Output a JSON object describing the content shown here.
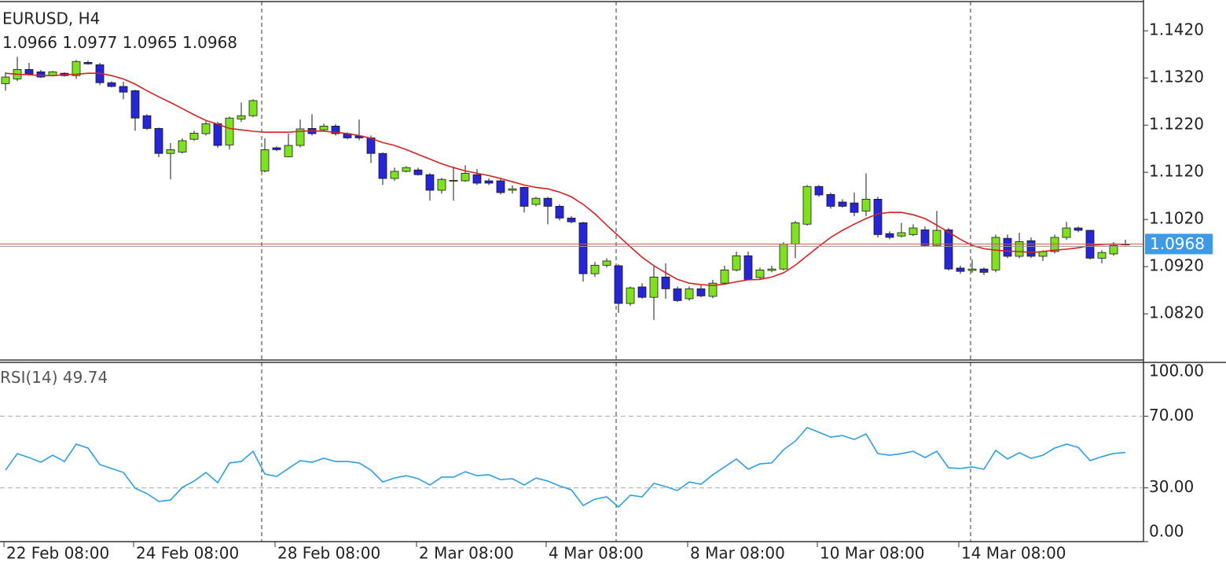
{
  "chart_data": [
    {
      "type": "candlestick",
      "title": "EURUSD, H4",
      "categories": [
        "22 Feb 08:00",
        null,
        null,
        null,
        null,
        null,
        null,
        null,
        null,
        null,
        null,
        "24 Feb 08:00",
        null,
        null,
        null,
        null,
        null,
        null,
        null,
        null,
        null,
        null,
        null,
        "28 Feb 08:00",
        null,
        null,
        null,
        null,
        null,
        null,
        null,
        null,
        null,
        null,
        null,
        "2 Mar 08:00",
        null,
        null,
        null,
        null,
        null,
        null,
        null,
        null,
        null,
        null,
        "4 Mar 08:00",
        null,
        null,
        null,
        null,
        null,
        null,
        null,
        null,
        null,
        null,
        null,
        "8 Mar 08:00",
        null,
        null,
        null,
        null,
        null,
        null,
        null,
        null,
        null,
        null,
        "10 Mar 08:00",
        null,
        null,
        null,
        null,
        null,
        null,
        null,
        null,
        null,
        null,
        null,
        "14 Mar 08:00",
        null,
        null,
        null,
        null,
        null,
        null,
        null,
        null,
        null,
        null,
        null,
        null,
        null,
        null
      ],
      "candles": [
        [
          1.1308,
          1.1332,
          1.1293,
          1.1322
        ],
        [
          1.1318,
          1.1365,
          1.1313,
          1.1338
        ],
        [
          1.1338,
          1.1352,
          1.1325,
          1.1328
        ],
        [
          1.1333,
          1.1337,
          1.132,
          1.1322
        ],
        [
          1.1325,
          1.1335,
          1.1323,
          1.1333
        ],
        [
          1.133,
          1.1332,
          1.1323,
          1.1325
        ],
        [
          1.1325,
          1.1358,
          1.1318,
          1.1355
        ],
        [
          1.1353,
          1.1357,
          1.1348,
          1.135
        ],
        [
          1.1348,
          1.1352,
          1.1305,
          1.131
        ],
        [
          1.131,
          1.1313,
          1.13,
          1.1302
        ],
        [
          1.1302,
          1.1312,
          1.1275,
          1.129
        ],
        [
          1.1293,
          1.1295,
          1.1208,
          1.1235
        ],
        [
          1.124,
          1.1243,
          1.121,
          1.1213
        ],
        [
          1.1213,
          1.1215,
          1.1152,
          1.116
        ],
        [
          1.116,
          1.1182,
          1.1105,
          1.1168
        ],
        [
          1.1163,
          1.1192,
          1.116,
          1.1187
        ],
        [
          1.119,
          1.1208,
          1.1187,
          1.1203
        ],
        [
          1.1202,
          1.1228,
          1.1198,
          1.1223
        ],
        [
          1.1223,
          1.1227,
          1.1172,
          1.1177
        ],
        [
          1.1178,
          1.1238,
          1.1168,
          1.1235
        ],
        [
          1.1233,
          1.1268,
          1.1227,
          1.124
        ],
        [
          1.124,
          1.1275,
          1.1237,
          1.1272
        ],
        [
          1.1123,
          1.1192,
          1.112,
          1.1168
        ],
        [
          1.1172,
          1.1175,
          1.1165,
          1.1168
        ],
        [
          1.1153,
          1.1202,
          1.1152,
          1.1177
        ],
        [
          1.1177,
          1.1232,
          1.1173,
          1.1212
        ],
        [
          1.1213,
          1.1243,
          1.1198,
          1.1202
        ],
        [
          1.121,
          1.1223,
          1.1207,
          1.1218
        ],
        [
          1.1218,
          1.1222,
          1.1198,
          1.1202
        ],
        [
          1.1202,
          1.1205,
          1.119,
          1.1193
        ],
        [
          1.1197,
          1.1232,
          1.1188,
          1.1193
        ],
        [
          1.1193,
          1.1198,
          1.114,
          1.116
        ],
        [
          1.116,
          1.1162,
          1.1093,
          1.1107
        ],
        [
          1.1107,
          1.113,
          1.1102,
          1.1122
        ],
        [
          1.1122,
          1.1133,
          1.112,
          1.113
        ],
        [
          1.1125,
          1.113,
          1.1113,
          1.1115
        ],
        [
          1.1115,
          1.1118,
          1.106,
          1.1082
        ],
        [
          1.1082,
          1.1108,
          1.1075,
          1.1105
        ],
        [
          1.1102,
          1.1132,
          1.106,
          1.1103
        ],
        [
          1.1102,
          1.1135,
          1.11,
          1.1118
        ],
        [
          1.1115,
          1.1127,
          1.1093,
          1.1097
        ],
        [
          1.1102,
          1.1107,
          1.1093,
          1.1097
        ],
        [
          1.1102,
          1.1108,
          1.1073,
          1.1077
        ],
        [
          1.1082,
          1.1092,
          1.1075,
          1.1085
        ],
        [
          1.1088,
          1.109,
          1.1035,
          1.1048
        ],
        [
          1.1052,
          1.1068,
          1.1048,
          1.1065
        ],
        [
          1.1065,
          1.1068,
          1.101,
          1.1048
        ],
        [
          1.1048,
          1.1052,
          1.1018,
          1.1023
        ],
        [
          1.1023,
          1.1027,
          1.1012,
          1.1015
        ],
        [
          1.1013,
          1.1015,
          1.0888,
          1.0905
        ],
        [
          1.0905,
          1.093,
          1.0898,
          1.0923
        ],
        [
          1.0923,
          1.0938,
          1.0918,
          1.0932
        ],
        [
          1.0922,
          1.0925,
          1.0822,
          1.0842
        ],
        [
          1.0842,
          1.0878,
          1.0837,
          1.0875
        ],
        [
          1.0877,
          1.0885,
          1.0852,
          1.0855
        ],
        [
          1.0855,
          1.0922,
          1.0807,
          1.0898
        ],
        [
          1.0898,
          1.0927,
          1.0852,
          1.0873
        ],
        [
          1.0873,
          1.0878,
          1.0845,
          1.0848
        ],
        [
          1.0852,
          1.0878,
          1.0848,
          1.0873
        ],
        [
          1.0873,
          1.0882,
          1.0855,
          1.0858
        ],
        [
          1.0857,
          1.0892,
          1.0853,
          1.0885
        ],
        [
          1.0885,
          1.0922,
          1.0882,
          1.0913
        ],
        [
          1.0913,
          1.0952,
          1.091,
          1.0943
        ],
        [
          1.0943,
          1.0952,
          1.0892,
          1.0893
        ],
        [
          1.0897,
          1.0918,
          1.0893,
          1.0913
        ],
        [
          1.0912,
          1.0922,
          1.0908,
          1.0915
        ],
        [
          1.0915,
          1.0972,
          1.0912,
          1.0968
        ],
        [
          1.0968,
          1.1017,
          1.0938,
          1.1013
        ],
        [
          1.101,
          1.1093,
          1.1007,
          1.109
        ],
        [
          1.109,
          1.1093,
          1.1068,
          1.1072
        ],
        [
          1.1073,
          1.1077,
          1.1043,
          1.1048
        ],
        [
          1.1057,
          1.1063,
          1.1045,
          1.1048
        ],
        [
          1.1055,
          1.1077,
          1.1027,
          1.1035
        ],
        [
          1.1038,
          1.1118,
          1.1027,
          1.1063
        ],
        [
          1.1063,
          1.1068,
          1.0982,
          1.0988
        ],
        [
          1.099,
          1.0995,
          1.0978,
          1.0982
        ],
        [
          1.0985,
          1.1013,
          1.0982,
          1.0992
        ],
        [
          1.0988,
          1.101,
          1.0985,
          1.1002
        ],
        [
          1.0998,
          1.1005,
          1.0962,
          1.0965
        ],
        [
          1.0965,
          1.1038,
          1.0963,
          1.0997
        ],
        [
          1.0998,
          1.1002,
          1.0912,
          1.0915
        ],
        [
          1.0917,
          1.0922,
          1.0905,
          1.091
        ],
        [
          1.0912,
          1.0935,
          1.0907,
          1.0915
        ],
        [
          1.0915,
          1.0918,
          1.0902,
          1.0908
        ],
        [
          1.0913,
          1.0988,
          1.0908,
          1.0982
        ],
        [
          1.098,
          1.0988,
          1.0938,
          1.0942
        ],
        [
          1.0942,
          1.0992,
          1.0938,
          1.0973
        ],
        [
          1.0975,
          1.0982,
          1.0938,
          1.0942
        ],
        [
          1.0942,
          1.0955,
          1.0932,
          1.0952
        ],
        [
          1.0952,
          1.0988,
          1.0948,
          1.0982
        ],
        [
          1.0982,
          1.1015,
          1.0977,
          1.1002
        ],
        [
          1.1002,
          1.1005,
          1.0993,
          1.0997
        ],
        [
          1.0997,
          1.0998,
          1.0935,
          1.0938
        ],
        [
          1.0938,
          1.0955,
          1.0927,
          1.095
        ],
        [
          1.0947,
          1.0972,
          1.0943,
          1.0965
        ],
        [
          1.0966,
          1.0977,
          1.0965,
          1.0968
        ]
      ],
      "up_color": "#7ee21e",
      "down_color": "#2626d8",
      "outline_color": "#1a1a1a",
      "overlay": {
        "type": "line",
        "color": "#d42222",
        "values": [
          1.133,
          1.1328,
          1.1327,
          1.1325,
          1.1325,
          1.1327,
          1.1328,
          1.133,
          1.133,
          1.1325,
          1.1318,
          1.1307,
          1.1293,
          1.128,
          1.1268,
          1.1255,
          1.1242,
          1.123,
          1.1222,
          1.1213,
          1.121,
          1.1207,
          1.1205,
          1.1205,
          1.1205,
          1.1207,
          1.1208,
          1.1207,
          1.1205,
          1.1202,
          1.1198,
          1.1192,
          1.1183,
          1.1177,
          1.1168,
          1.1158,
          1.1148,
          1.1138,
          1.113,
          1.1123,
          1.1118,
          1.1113,
          1.1107,
          1.11,
          1.1093,
          1.1088,
          1.1085,
          1.1078,
          1.1068,
          1.1052,
          1.1032,
          1.1008,
          1.0985,
          1.0962,
          1.094,
          1.0922,
          1.0907,
          1.0893,
          1.0885,
          1.0882,
          1.088,
          1.0883,
          1.0888,
          1.0892,
          1.0893,
          1.0898,
          1.0907,
          1.0923,
          1.0943,
          1.0963,
          1.0982,
          1.0997,
          1.101,
          1.1022,
          1.1032,
          1.1035,
          1.1035,
          1.103,
          1.1022,
          1.1008,
          1.0993,
          1.0978,
          1.0965,
          1.0958,
          1.0955,
          1.0953,
          1.0952,
          1.095,
          1.0952,
          1.0955,
          1.0957,
          1.096,
          1.0965,
          1.0967,
          1.0968,
          1.0967
        ]
      },
      "last_price_color": "#3d9ae6",
      "ylim": [
        1.0722,
        1.1482
      ],
      "yticks": [
        {
          "value": 1.142,
          "label": "1.1420"
        },
        {
          "value": 1.132,
          "label": "1.1320"
        },
        {
          "value": 1.122,
          "label": "1.1220"
        },
        {
          "value": 1.112,
          "label": "1.1120"
        },
        {
          "value": 1.102,
          "label": "1.1020"
        },
        {
          "value": 1.092,
          "label": "1.0920"
        },
        {
          "value": 1.082,
          "label": "1.0820"
        }
      ],
      "grid": false
    },
    {
      "type": "line",
      "title": "RSI(14)",
      "color": "#2e9fe3",
      "values": [
        39.9,
        49.1,
        46.9,
        44.3,
        48.2,
        44.7,
        54.4,
        52.2,
        43.0,
        40.8,
        38.6,
        29.8,
        26.8,
        22.4,
        23.2,
        30.3,
        33.8,
        38.6,
        32.9,
        43.9,
        44.7,
        50.4,
        37.7,
        36.4,
        40.8,
        45.2,
        44.3,
        46.5,
        44.7,
        44.7,
        43.9,
        39.9,
        33.3,
        35.5,
        36.8,
        35.1,
        31.6,
        36.0,
        36.0,
        39.0,
        36.8,
        37.3,
        34.6,
        35.1,
        31.6,
        35.5,
        33.8,
        31.1,
        28.9,
        20.2,
        23.7,
        25.0,
        19.3,
        25.9,
        25.0,
        32.5,
        30.7,
        28.5,
        33.3,
        32.0,
        37.3,
        41.7,
        46.1,
        40.4,
        43.4,
        43.9,
        51.3,
        56.1,
        63.6,
        61.0,
        58.3,
        59.2,
        57.0,
        60.1,
        49.1,
        48.2,
        49.1,
        50.4,
        46.9,
        50.4,
        41.2,
        40.8,
        41.7,
        40.4,
        50.9,
        46.1,
        49.6,
        46.5,
        48.2,
        52.2,
        54.4,
        52.6,
        45.2,
        47.4,
        49.2,
        49.74
      ],
      "ylim": [
        0,
        100
      ],
      "yticks": [
        {
          "value": 100,
          "label": "100.00"
        },
        {
          "value": 70,
          "label": "70.00"
        },
        {
          "value": 30,
          "label": "30.00"
        },
        {
          "value": 0,
          "label": "0.00"
        }
      ],
      "grid": true
    }
  ]
}
